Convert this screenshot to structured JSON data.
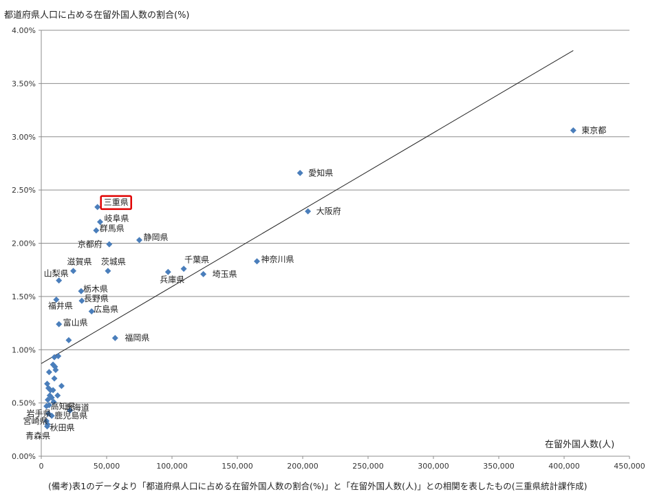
{
  "chart_data": {
    "type": "scatter",
    "title": "",
    "ylabel": "都道府県人口に占める在留外国人数の割合(%)",
    "xlabel": "在留外国人数(人)",
    "note": "(備考)表1のデータより「都道府県人口に占める在留外国人数の割合(%)」と「在留外国人数(人)」との相関を表したもの(三重県統計課作成)",
    "xlim": [
      0,
      450000
    ],
    "ylim": [
      0,
      4.0
    ],
    "x_ticks": [
      "0",
      "50,000",
      "100,000",
      "150,000",
      "200,000",
      "250,000",
      "300,000",
      "350,000",
      "400,000",
      "450,000"
    ],
    "y_ticks": [
      "0.00%",
      "0.50%",
      "1.00%",
      "1.50%",
      "2.00%",
      "2.50%",
      "3.00%",
      "3.50%",
      "4.00%"
    ],
    "grid": "horizontal",
    "marker_color": "#4a7ebb",
    "trendline": {
      "x": [
        0,
        407000
      ],
      "y": [
        0.87,
        3.81
      ],
      "color": "#222222"
    },
    "highlight_color": "#e00000",
    "points": [
      {
        "name": "東京都",
        "x": 407000,
        "y": 3.06
      },
      {
        "name": "愛知県",
        "x": 198000,
        "y": 2.66
      },
      {
        "name": "大阪府",
        "x": 204000,
        "y": 2.3
      },
      {
        "name": "三重県",
        "x": 43000,
        "y": 2.34,
        "highlight": true
      },
      {
        "name": "岐阜県",
        "x": 45000,
        "y": 2.2
      },
      {
        "name": "群馬県",
        "x": 42000,
        "y": 2.12
      },
      {
        "name": "京都府",
        "x": 52000,
        "y": 1.99
      },
      {
        "name": "静岡県",
        "x": 75000,
        "y": 2.03
      },
      {
        "name": "神奈川県",
        "x": 165000,
        "y": 1.83
      },
      {
        "name": "千葉県",
        "x": 109000,
        "y": 1.76
      },
      {
        "name": "兵庫県",
        "x": 97000,
        "y": 1.73
      },
      {
        "name": "埼玉県",
        "x": 124000,
        "y": 1.71
      },
      {
        "name": "滋賀県",
        "x": 24500,
        "y": 1.74
      },
      {
        "name": "茨城県",
        "x": 51000,
        "y": 1.74
      },
      {
        "name": "山梨県",
        "x": 13500,
        "y": 1.65
      },
      {
        "name": "栃木県",
        "x": 30500,
        "y": 1.55
      },
      {
        "name": "長野県",
        "x": 31000,
        "y": 1.46
      },
      {
        "name": "福井県",
        "x": 11500,
        "y": 1.47
      },
      {
        "name": "広島県",
        "x": 38500,
        "y": 1.36
      },
      {
        "name": "富山県",
        "x": 13500,
        "y": 1.24
      },
      {
        "name": "福岡県",
        "x": 56500,
        "y": 1.11
      },
      {
        "name": "高知県",
        "x": 4000,
        "y": 0.47
      },
      {
        "name": "北海道",
        "x": 22000,
        "y": 0.43
      },
      {
        "name": "岩手県",
        "x": 5500,
        "y": 0.4
      },
      {
        "name": "鹿児島県",
        "x": 8000,
        "y": 0.38
      },
      {
        "name": "宮崎県",
        "x": 4000,
        "y": 0.33
      },
      {
        "name": "秋田県",
        "x": 4500,
        "y": 0.28
      },
      {
        "name": "青森県",
        "x": 4800,
        "y": 0.3
      },
      {
        "name": "",
        "x": 21000,
        "y": 1.09
      },
      {
        "name": "",
        "x": 13000,
        "y": 0.94
      },
      {
        "name": "",
        "x": 10000,
        "y": 0.93
      },
      {
        "name": "",
        "x": 6000,
        "y": 0.79
      },
      {
        "name": "",
        "x": 9000,
        "y": 0.86
      },
      {
        "name": "",
        "x": 10500,
        "y": 0.84
      },
      {
        "name": "",
        "x": 11000,
        "y": 0.81
      },
      {
        "name": "",
        "x": 10000,
        "y": 0.73
      },
      {
        "name": "",
        "x": 4500,
        "y": 0.68
      },
      {
        "name": "",
        "x": 5500,
        "y": 0.64
      },
      {
        "name": "",
        "x": 7000,
        "y": 0.62
      },
      {
        "name": "",
        "x": 9000,
        "y": 0.62
      },
      {
        "name": "",
        "x": 15500,
        "y": 0.66
      },
      {
        "name": "",
        "x": 6500,
        "y": 0.57
      },
      {
        "name": "",
        "x": 8000,
        "y": 0.55
      },
      {
        "name": "",
        "x": 12500,
        "y": 0.57
      },
      {
        "name": "",
        "x": 5000,
        "y": 0.53
      },
      {
        "name": "",
        "x": 9500,
        "y": 0.51
      },
      {
        "name": "",
        "x": 6000,
        "y": 0.48
      }
    ]
  }
}
